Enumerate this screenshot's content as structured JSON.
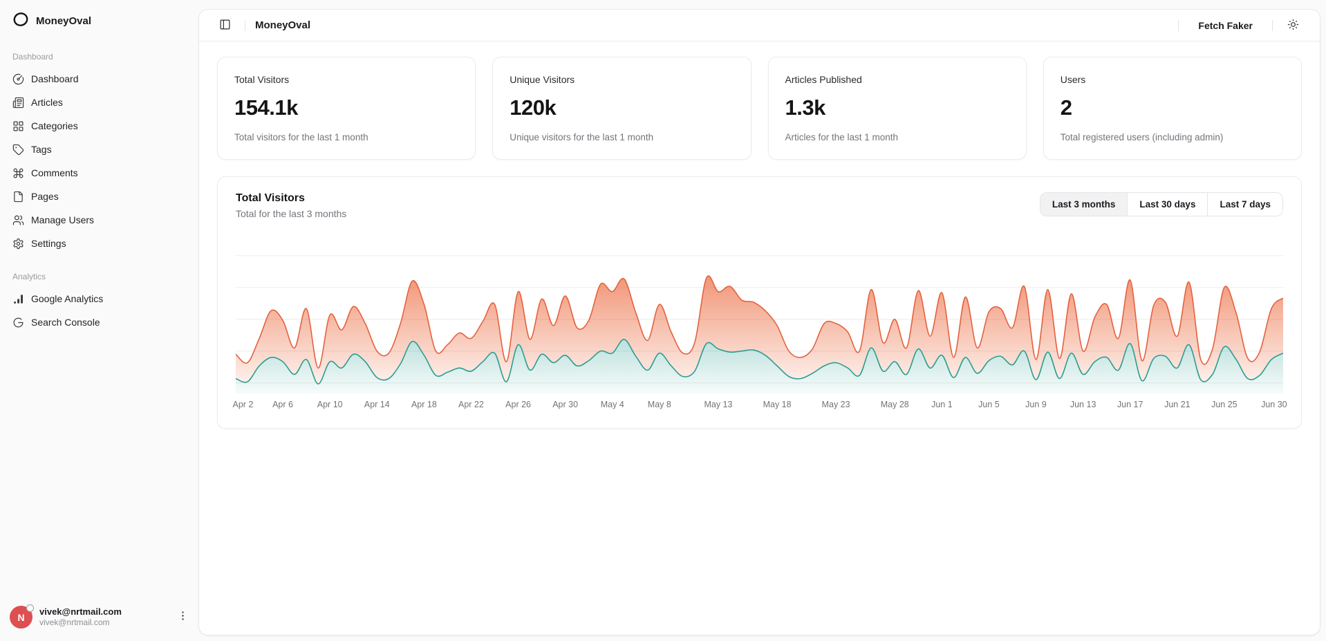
{
  "brand": {
    "name": "MoneyOval",
    "logo_icon": "oval-logo-icon"
  },
  "sidebar": {
    "groups": [
      {
        "label": "Dashboard",
        "items": [
          {
            "label": "Dashboard",
            "icon": "circle-gauge-icon"
          },
          {
            "label": "Articles",
            "icon": "newspaper-icon"
          },
          {
            "label": "Categories",
            "icon": "layout-grid-icon"
          },
          {
            "label": "Tags",
            "icon": "tag-icon"
          },
          {
            "label": "Comments",
            "icon": "command-icon"
          },
          {
            "label": "Pages",
            "icon": "file-icon"
          },
          {
            "label": "Manage Users",
            "icon": "users-icon"
          },
          {
            "label": "Settings",
            "icon": "settings-gear-icon"
          }
        ]
      },
      {
        "label": "Analytics",
        "items": [
          {
            "label": "Google Analytics",
            "icon": "analytics-bars-icon"
          },
          {
            "label": "Search Console",
            "icon": "google-g-icon"
          }
        ]
      }
    ],
    "footer": {
      "avatar_initial": "N",
      "name": "vivek@nrtmail.com",
      "email": "vivek@nrtmail.com"
    }
  },
  "header": {
    "title": "MoneyOval",
    "fetch_faker_label": "Fetch Faker",
    "sidebar_toggle_icon": "panel-left-icon",
    "theme_toggle_icon": "sun-icon"
  },
  "stats": [
    {
      "title": "Total Visitors",
      "value": "154.1k",
      "desc": "Total visitors for the last 1 month"
    },
    {
      "title": "Unique Visitors",
      "value": "120k",
      "desc": "Unique visitors for the last 1 month"
    },
    {
      "title": "Articles Published",
      "value": "1.3k",
      "desc": "Articles for the last 1 month"
    },
    {
      "title": "Users",
      "value": "2",
      "desc": "Total registered users (including admin)"
    }
  ],
  "chart_card": {
    "title": "Total Visitors",
    "subtitle": "Total for the last 3 months",
    "ranges": [
      "Last 3 months",
      "Last 30 days",
      "Last 7 days"
    ],
    "active_range": "Last 3 months"
  },
  "colors": {
    "accent_orange": "#e5613e",
    "accent_teal": "#2a9d90",
    "avatar_red": "#dd4f51",
    "gridline": "#ececec"
  },
  "chart_data": {
    "type": "area",
    "stacked": true,
    "curve": "smooth",
    "x_range": [
      "Apr 2",
      "Jun 30"
    ],
    "days": 90,
    "x_ticks": [
      "Apr 2",
      "Apr 6",
      "Apr 10",
      "Apr 14",
      "Apr 18",
      "Apr 22",
      "Apr 26",
      "Apr 30",
      "May 4",
      "May 8",
      "May 13",
      "May 18",
      "May 23",
      "May 28",
      "Jun 1",
      "Jun 5",
      "Jun 9",
      "Jun 13",
      "Jun 17",
      "Jun 21",
      "Jun 25",
      "Jun 30"
    ],
    "y_axis": {
      "plot_max": 750,
      "gridlines": [
        50,
        200,
        350,
        500,
        650
      ],
      "tick_labels_visible": false
    },
    "legend_visible": false,
    "series": [
      {
        "name": "teal",
        "color": "#2a9d90",
        "values": [
          70,
          55,
          130,
          170,
          150,
          90,
          160,
          45,
          150,
          120,
          185,
          150,
          75,
          70,
          140,
          245,
          180,
          85,
          100,
          120,
          105,
          150,
          190,
          55,
          230,
          110,
          185,
          145,
          180,
          130,
          155,
          200,
          190,
          255,
          175,
          110,
          190,
          130,
          80,
          105,
          235,
          210,
          195,
          200,
          205,
          180,
          130,
          80,
          70,
          95,
          130,
          145,
          120,
          85,
          215,
          105,
          150,
          90,
          210,
          120,
          180,
          75,
          170,
          95,
          155,
          175,
          135,
          200,
          65,
          195,
          70,
          190,
          90,
          150,
          170,
          110,
          235,
          60,
          165,
          175,
          120,
          230,
          65,
          90,
          220,
          160,
          70,
          85,
          160,
          190
        ]
      },
      {
        "name": "orange",
        "color": "#e5613e",
        "stacked_on": "teal",
        "values": [
          115,
          90,
          130,
          220,
          195,
          125,
          240,
          75,
          220,
          180,
          225,
          180,
          125,
          120,
          190,
          285,
          240,
          115,
          130,
          165,
          155,
          190,
          230,
          95,
          250,
          145,
          260,
          175,
          280,
          180,
          190,
          315,
          290,
          285,
          205,
          140,
          230,
          160,
          110,
          135,
          310,
          270,
          310,
          240,
          225,
          210,
          190,
          120,
          100,
          115,
          200,
          185,
          170,
          115,
          275,
          135,
          200,
          125,
          275,
          150,
          295,
          95,
          285,
          120,
          230,
          225,
          175,
          305,
          95,
          295,
          95,
          280,
          110,
          210,
          250,
          150,
          300,
          95,
          250,
          255,
          150,
          295,
          95,
          120,
          280,
          220,
          95,
          110,
          240,
          260
        ]
      }
    ]
  }
}
